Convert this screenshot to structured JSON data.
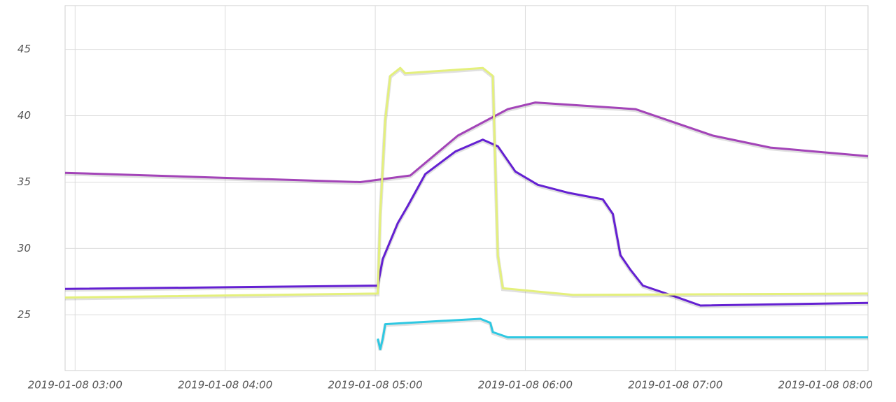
{
  "chart_data": {
    "type": "line",
    "xlim": [
      "2019-01-08 02:56",
      "2019-01-08 08:17"
    ],
    "xticks": [
      "2019-01-08 03:00",
      "2019-01-08 04:00",
      "2019-01-08 05:00",
      "2019-01-08 06:00",
      "2019-01-08 07:00",
      "2019-01-08 08:00"
    ],
    "ylim": [
      20.8,
      48.3
    ],
    "yticks": [
      25,
      30,
      35,
      40,
      45
    ],
    "grid": true,
    "series": [
      {
        "color": "#a344b8",
        "x": [
          "2019-01-08 02:56",
          "2019-01-08 04:54",
          "2019-01-08 05:14",
          "2019-01-08 05:33",
          "2019-01-08 05:53",
          "2019-01-08 06:04",
          "2019-01-08 06:44",
          "2019-01-08 07:15",
          "2019-01-08 07:38",
          "2019-01-08 08:17"
        ],
        "values": [
          35.7,
          35.0,
          35.5,
          38.5,
          40.5,
          41.0,
          40.5,
          38.5,
          37.6,
          36.95
        ]
      },
      {
        "color": "#6420d2",
        "x": [
          "2019-01-08 02:56",
          "2019-01-08 05:01",
          "2019-01-08 05:03",
          "2019-01-08 05:09",
          "2019-01-08 05:13",
          "2019-01-08 05:20",
          "2019-01-08 05:32",
          "2019-01-08 05:43",
          "2019-01-08 05:49",
          "2019-01-08 05:56",
          "2019-01-08 06:05",
          "2019-01-08 06:17",
          "2019-01-08 06:31",
          "2019-01-08 06:35",
          "2019-01-08 06:38",
          "2019-01-08 06:42",
          "2019-01-08 06:47",
          "2019-01-08 07:01",
          "2019-01-08 07:10",
          "2019-01-08 08:17"
        ],
        "values": [
          26.95,
          27.2,
          29.2,
          31.9,
          33.2,
          35.6,
          37.3,
          38.2,
          37.7,
          35.8,
          34.8,
          34.2,
          33.7,
          32.6,
          29.5,
          28.4,
          27.2,
          26.3,
          25.7,
          25.9
        ]
      },
      {
        "color": "#e4f07c",
        "x": [
          "2019-01-08 02:56",
          "2019-01-08 05:01",
          "2019-01-08 05:02",
          "2019-01-08 05:04",
          "2019-01-08 05:06",
          "2019-01-08 05:10",
          "2019-01-08 05:12",
          "2019-01-08 05:43",
          "2019-01-08 05:47",
          "2019-01-08 05:49",
          "2019-01-08 05:51",
          "2019-01-08 06:19",
          "2019-01-08 08:17"
        ],
        "values": [
          26.3,
          26.6,
          32.6,
          39.7,
          43.0,
          43.6,
          43.2,
          43.6,
          43.0,
          29.5,
          27.0,
          26.5,
          26.6
        ]
      },
      {
        "color": "#2ec8e2",
        "x": [
          "2019-01-08 05:01",
          "2019-01-08 05:02",
          "2019-01-08 05:03",
          "2019-01-08 05:04",
          "2019-01-08 05:42",
          "2019-01-08 05:46",
          "2019-01-08 05:47",
          "2019-01-08 05:53",
          "2019-01-08 08:17"
        ],
        "values": [
          23.2,
          22.4,
          23.2,
          24.3,
          24.7,
          24.4,
          23.7,
          23.3,
          23.3
        ]
      }
    ]
  }
}
